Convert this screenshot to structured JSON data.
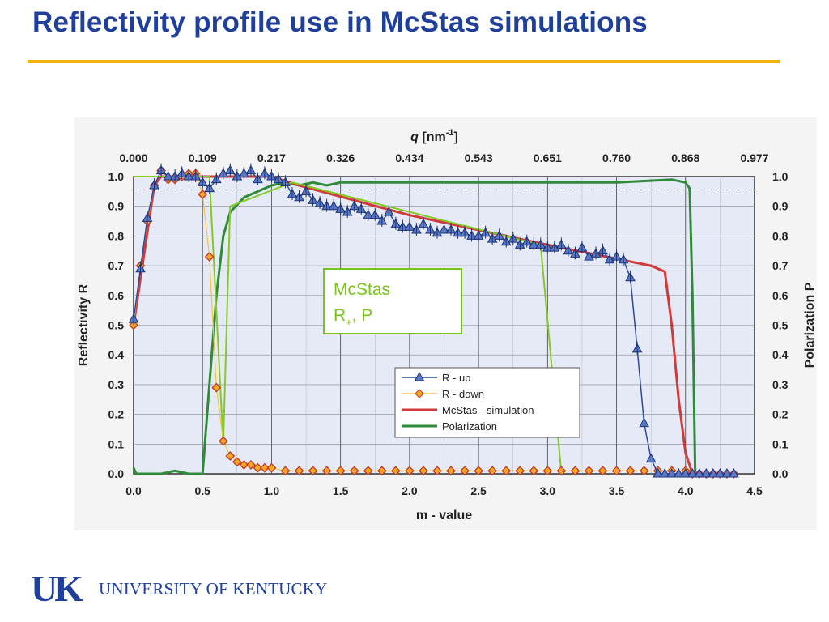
{
  "slide": {
    "title": "Reflectivity profile use in McStas simulations",
    "accent_color": "#f2b30f",
    "title_color": "#1f3f9a"
  },
  "logo": {
    "mark": "UK",
    "name": "UNIVERSITY OF KENTUCKY"
  },
  "chart_data": {
    "type": "line",
    "title": "",
    "xlabel": "m  - value",
    "ylabel": "Reflectivity R",
    "y2label": "Polarization P",
    "x2label": "q [nm-1]",
    "x2label_main": "q",
    "x2label_unit": "[nm",
    "x2label_exp": "-1",
    "x2label_close": "]",
    "xlim": [
      0,
      4.5
    ],
    "ylim": [
      0,
      1.0
    ],
    "grid": true,
    "x_ticks": [
      "0.0",
      "0.5",
      "1.0",
      "1.5",
      "2.0",
      "2.5",
      "3.0",
      "3.5",
      "4.0",
      "4.5"
    ],
    "y_ticks": [
      "0.0",
      "0.1",
      "0.2",
      "0.3",
      "0.4",
      "0.5",
      "0.6",
      "0.7",
      "0.8",
      "0.9",
      "1.0"
    ],
    "x2_ticks": [
      "0.000",
      "0.109",
      "0.217",
      "0.326",
      "0.434",
      "0.543",
      "0.651",
      "0.760",
      "0.868",
      "0.977"
    ],
    "reference_line_y": 0.955,
    "legend": {
      "placement": "lower-right",
      "entries": [
        "R - up",
        "R - down",
        "McStas - simulation",
        "Polarization"
      ]
    },
    "annotation": {
      "line1": "McStas",
      "line2_main": "R",
      "line2_sub": "+",
      "line2_rest": ", P",
      "color": "#7ac41a"
    },
    "series": [
      {
        "name": "R - up",
        "color": "#2a4a9a",
        "marker": "triangle",
        "x": [
          0.0,
          0.05,
          0.1,
          0.15,
          0.2,
          0.25,
          0.3,
          0.35,
          0.4,
          0.45,
          0.5,
          0.55,
          0.6,
          0.65,
          0.7,
          0.75,
          0.8,
          0.85,
          0.9,
          0.95,
          1.0,
          1.05,
          1.1,
          1.15,
          1.2,
          1.25,
          1.3,
          1.35,
          1.4,
          1.45,
          1.5,
          1.55,
          1.6,
          1.65,
          1.7,
          1.75,
          1.8,
          1.85,
          1.9,
          1.95,
          2.0,
          2.05,
          2.1,
          2.15,
          2.2,
          2.25,
          2.3,
          2.35,
          2.4,
          2.45,
          2.5,
          2.55,
          2.6,
          2.65,
          2.7,
          2.75,
          2.8,
          2.85,
          2.9,
          2.95,
          3.0,
          3.05,
          3.1,
          3.15,
          3.2,
          3.25,
          3.3,
          3.35,
          3.4,
          3.45,
          3.5,
          3.55,
          3.6,
          3.65,
          3.7,
          3.75,
          3.8,
          3.85,
          3.9,
          3.95,
          4.0,
          4.05,
          4.1,
          4.15,
          4.2,
          4.25,
          4.3,
          4.35
        ],
        "y": [
          0.52,
          0.69,
          0.86,
          0.97,
          1.02,
          1.0,
          1.0,
          1.01,
          1.0,
          1.0,
          0.98,
          0.96,
          0.99,
          1.01,
          1.02,
          1.0,
          1.01,
          1.02,
          0.99,
          1.01,
          1.0,
          0.99,
          0.98,
          0.94,
          0.93,
          0.95,
          0.92,
          0.91,
          0.9,
          0.9,
          0.89,
          0.88,
          0.9,
          0.89,
          0.87,
          0.87,
          0.85,
          0.88,
          0.84,
          0.83,
          0.83,
          0.82,
          0.84,
          0.82,
          0.81,
          0.82,
          0.82,
          0.81,
          0.81,
          0.8,
          0.8,
          0.81,
          0.79,
          0.8,
          0.78,
          0.79,
          0.77,
          0.78,
          0.77,
          0.77,
          0.76,
          0.76,
          0.77,
          0.75,
          0.74,
          0.76,
          0.73,
          0.74,
          0.75,
          0.72,
          0.73,
          0.72,
          0.66,
          0.42,
          0.17,
          0.05,
          0.0,
          0.0,
          0.0,
          0.0,
          0.0,
          0.0,
          0.0,
          0.0,
          0.0,
          0.0,
          0.0,
          0.0
        ]
      },
      {
        "name": "R - down",
        "color": "#e05a1e",
        "marker": "diamond",
        "x": [
          0.0,
          0.05,
          0.1,
          0.15,
          0.2,
          0.25,
          0.3,
          0.35,
          0.4,
          0.45,
          0.5,
          0.55,
          0.6,
          0.65,
          0.7,
          0.75,
          0.8,
          0.85,
          0.9,
          0.95,
          1.0,
          1.1,
          1.2,
          1.3,
          1.4,
          1.5,
          1.6,
          1.7,
          1.8,
          1.9,
          2.0,
          2.1,
          2.2,
          2.3,
          2.4,
          2.5,
          2.6,
          2.7,
          2.8,
          2.9,
          3.0,
          3.1,
          3.2,
          3.3,
          3.4,
          3.5,
          3.6,
          3.7,
          3.8,
          3.9,
          4.0,
          4.05,
          4.1,
          4.15,
          4.2,
          4.25,
          4.3,
          4.35
        ],
        "y": [
          0.5,
          0.7,
          0.85,
          0.97,
          1.02,
          0.99,
          0.99,
          1.0,
          1.01,
          1.01,
          0.94,
          0.73,
          0.29,
          0.11,
          0.06,
          0.04,
          0.03,
          0.03,
          0.02,
          0.02,
          0.02,
          0.01,
          0.01,
          0.01,
          0.01,
          0.01,
          0.01,
          0.01,
          0.01,
          0.01,
          0.01,
          0.01,
          0.01,
          0.01,
          0.01,
          0.01,
          0.01,
          0.01,
          0.01,
          0.01,
          0.01,
          0.01,
          0.01,
          0.01,
          0.01,
          0.01,
          0.01,
          0.01,
          0.01,
          0.01,
          0.01,
          0.0,
          0.0,
          0.0,
          0.0,
          0.0,
          0.0,
          0.0
        ]
      },
      {
        "name": "McStas - simulation",
        "color": "#d13a3a",
        "marker": "none",
        "x": [
          0.0,
          0.15,
          0.2,
          0.5,
          1.0,
          1.2,
          2.0,
          3.0,
          3.75,
          3.85,
          3.9,
          3.95,
          4.0,
          4.05,
          4.1
        ],
        "y": [
          0.5,
          0.97,
          1.0,
          1.0,
          1.0,
          0.97,
          0.87,
          0.77,
          0.7,
          0.68,
          0.5,
          0.25,
          0.07,
          0.0,
          0.0
        ]
      },
      {
        "name": "Polarization",
        "color": "#2f8a3a",
        "marker": "none",
        "x": [
          0.0,
          0.02,
          0.05,
          0.2,
          0.3,
          0.4,
          0.5,
          0.55,
          0.6,
          0.65,
          0.7,
          0.8,
          0.9,
          1.0,
          1.1,
          1.2,
          1.3,
          1.4,
          1.5,
          2.0,
          2.5,
          3.0,
          3.5,
          3.9,
          4.0,
          4.03,
          4.05,
          4.07,
          4.1
        ],
        "y": [
          0.02,
          0.0,
          0.0,
          0.0,
          0.01,
          0.0,
          0.0,
          0.3,
          0.6,
          0.8,
          0.88,
          0.93,
          0.95,
          0.97,
          0.98,
          0.97,
          0.98,
          0.97,
          0.98,
          0.98,
          0.98,
          0.98,
          0.98,
          0.99,
          0.98,
          0.96,
          0.6,
          0.0,
          0.0
        ]
      },
      {
        "name": "McStas R+, P",
        "color": "#86c926",
        "marker": "none",
        "x": [
          0.0,
          0.55,
          0.65,
          0.7,
          1.15,
          2.95,
          3.1
        ],
        "y": [
          1.0,
          1.0,
          0.1,
          0.9,
          0.98,
          0.77,
          0.0
        ]
      }
    ]
  }
}
